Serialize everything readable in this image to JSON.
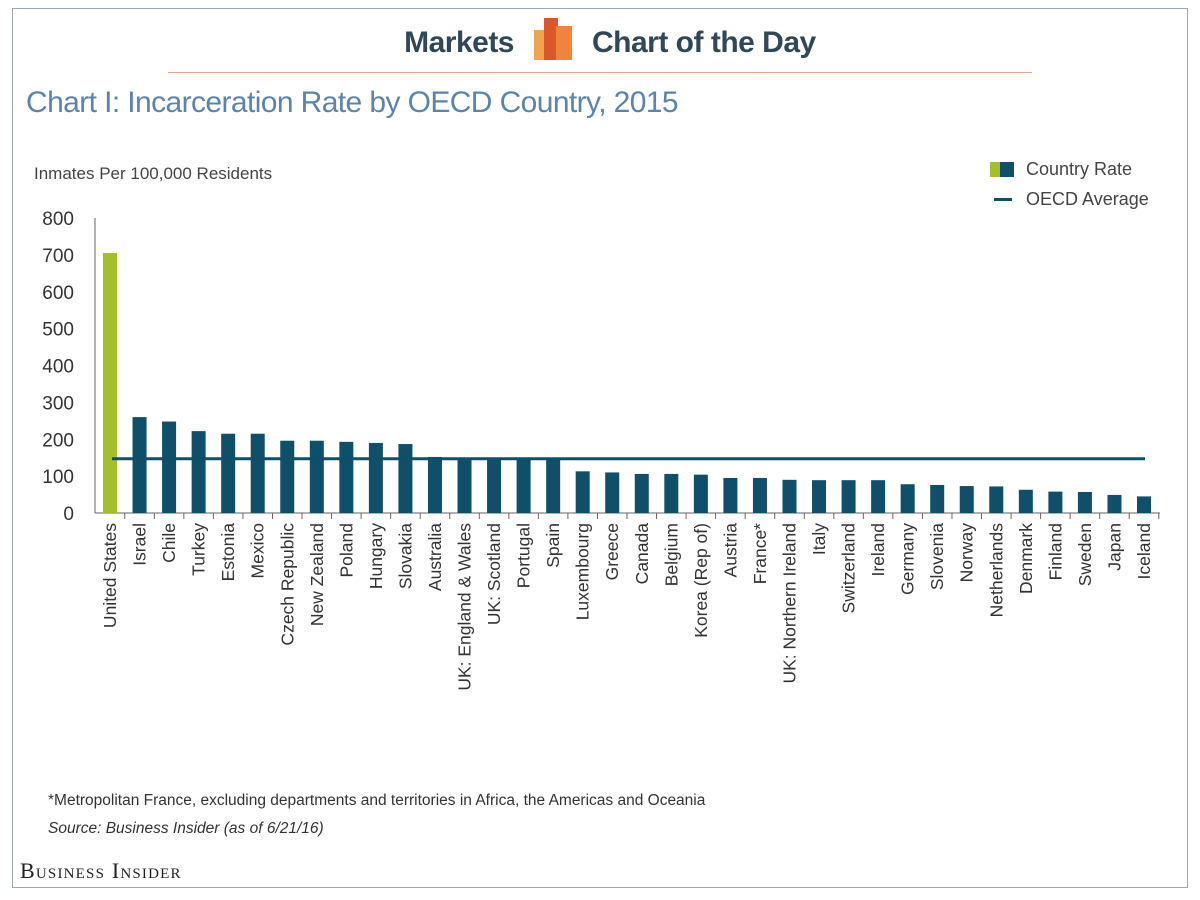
{
  "header": {
    "left_text": "Markets",
    "right_text": "Chart of the Day"
  },
  "chart_data": {
    "type": "bar",
    "title": "Chart I: Incarceration Rate by OECD Country, 2015",
    "ylabel": "Inmates Per 100,000 Residents",
    "xlabel": "",
    "ylim": [
      0,
      800
    ],
    "yticks": [
      0,
      100,
      200,
      300,
      400,
      500,
      600,
      700,
      800
    ],
    "categories": [
      "United States",
      "Israel",
      "Chile",
      "Turkey",
      "Estonia",
      "Mexico",
      "Czech Republic",
      "New Zealand",
      "Poland",
      "Hungary",
      "Slovakia",
      "Australia",
      "UK: England & Wales",
      "UK: Scotland",
      "Portugal",
      "Spain",
      "Luxembourg",
      "Greece",
      "Canada",
      "Belgium",
      "Korea (Rep of)",
      "Austria",
      "France*",
      "UK: Northern Ireland",
      "Italy",
      "Switzerland",
      "Ireland",
      "Germany",
      "Slovenia",
      "Norway",
      "Netherlands",
      "Denmark",
      "Finland",
      "Sweden",
      "Japan",
      "Iceland"
    ],
    "series": [
      {
        "name": "Country Rate",
        "values": [
          705,
          260,
          248,
          222,
          215,
          215,
          196,
          196,
          193,
          190,
          187,
          152,
          148,
          146,
          146,
          146,
          113,
          110,
          106,
          106,
          104,
          95,
          95,
          90,
          89,
          89,
          89,
          78,
          76,
          73,
          72,
          63,
          58,
          57,
          49,
          45
        ]
      }
    ],
    "reference_lines": [
      {
        "name": "OECD Average",
        "value": 147
      }
    ],
    "highlight_category": "United States",
    "colors": {
      "highlight": "#a3bf2e",
      "bars": "#0f4f6a",
      "average_line": "#0f4f6a"
    },
    "legend_position": "top-right",
    "grid": false
  },
  "legend": {
    "country_rate": "Country Rate",
    "oecd_average": "OECD Average"
  },
  "footnote": "*Metropolitan France, excluding departments and territories in Africa, the Americas and Oceania",
  "source": "Source: Business Insider (as of 6/21/16)",
  "brand": "Business Insider"
}
